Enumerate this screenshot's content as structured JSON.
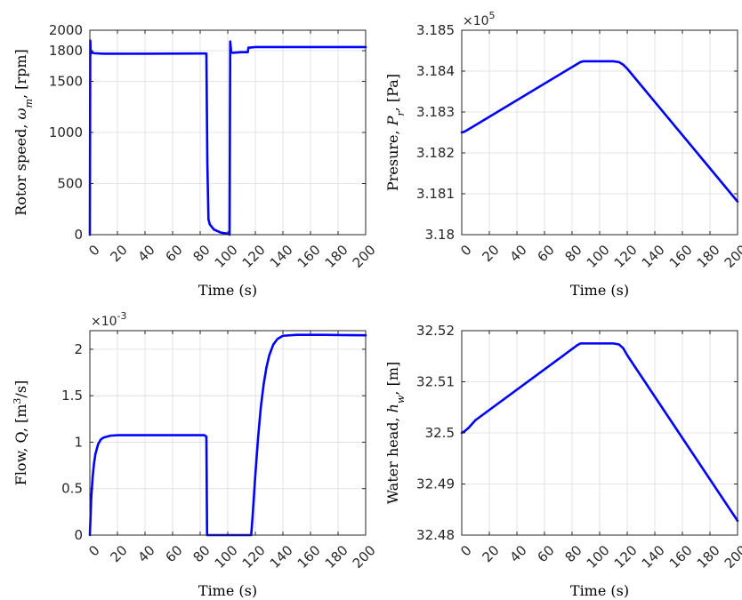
{
  "chart_data": [
    {
      "type": "line",
      "xlabel": "Time (s)",
      "ylabel": "Rotor speed, ω_m, [rpm]",
      "ylabel_parts": {
        "prefix": "Rotor speed, ",
        "symbol": "ω",
        "sub": "m",
        "suffix": ", [rpm]"
      },
      "xlim": [
        0,
        200
      ],
      "ylim": [
        0,
        2000
      ],
      "xticks": [
        "0",
        "20",
        "40",
        "60",
        "80",
        "100",
        "120",
        "140",
        "160",
        "180",
        "200"
      ],
      "yticks": [
        "0",
        "500",
        "1000",
        "1500",
        "1800",
        "2000"
      ],
      "ytick_values": [
        0,
        500,
        1000,
        1500,
        1800,
        2000
      ],
      "grid": true,
      "color": "#0000ff",
      "x": [
        0,
        0.3,
        0.6,
        1.5,
        3,
        10,
        40,
        80,
        84.5,
        85.2,
        86,
        87,
        90,
        95,
        100,
        101.3,
        101.8,
        102.5,
        104,
        110,
        114.5,
        115,
        116,
        120,
        150,
        200
      ],
      "y": [
        0,
        1900,
        1770,
        1785,
        1775,
        1770,
        1770,
        1772,
        1772,
        700,
        150,
        100,
        50,
        20,
        10,
        0,
        1890,
        1780,
        1780,
        1785,
        1785,
        1830,
        1830,
        1835,
        1835,
        1835
      ]
    },
    {
      "type": "line",
      "xlabel": "Time (s)",
      "ylabel": "Presure, P_r, [Pa]",
      "ylabel_parts": {
        "prefix": "Presure, ",
        "symbol": "P",
        "sub": "r",
        "suffix": ", [Pa]"
      },
      "xlim": [
        0,
        200
      ],
      "ylim": [
        3.18,
        3.185
      ],
      "exponent": "5",
      "xticks": [
        "0",
        "20",
        "40",
        "60",
        "80",
        "100",
        "120",
        "140",
        "160",
        "180",
        "200"
      ],
      "yticks": [
        "3.18",
        "3.181",
        "3.182",
        "3.183",
        "3.184",
        "3.185"
      ],
      "ytick_values": [
        3.18,
        3.181,
        3.182,
        3.183,
        3.184,
        3.185
      ],
      "grid": true,
      "color": "#0000ff",
      "x": [
        0,
        2,
        5,
        10,
        84,
        86,
        88,
        110,
        114,
        117,
        120,
        200
      ],
      "y": [
        3.1825,
        3.18252,
        3.18258,
        3.18268,
        3.18418,
        3.18422,
        3.18424,
        3.18424,
        3.18422,
        3.18416,
        3.18406,
        3.18081
      ]
    },
    {
      "type": "line",
      "xlabel": "Time (s)",
      "ylabel": "Flow, Q, [m³/s]",
      "ylabel_parts": {
        "prefix": "Flow, Q, [m",
        "sup": "3",
        "suffix": "/s]"
      },
      "xlim": [
        0,
        200
      ],
      "ylim": [
        0,
        2.2
      ],
      "exponent": "-3",
      "xticks": [
        "0",
        "20",
        "40",
        "60",
        "80",
        "100",
        "120",
        "140",
        "160",
        "180",
        "200"
      ],
      "yticks": [
        "0",
        "0.5",
        "1",
        "1.5",
        "2"
      ],
      "ytick_values": [
        0,
        0.5,
        1,
        1.5,
        2
      ],
      "grid": true,
      "color": "#0000ff",
      "x": [
        0,
        1,
        2,
        3,
        4,
        6,
        8,
        10,
        15,
        20,
        30,
        60,
        83,
        84.5,
        85,
        100,
        117,
        118,
        120,
        122,
        124,
        126,
        128,
        130,
        133,
        136,
        140,
        150,
        170,
        200
      ],
      "y": [
        0,
        0.4,
        0.62,
        0.77,
        0.87,
        0.98,
        1.03,
        1.05,
        1.07,
        1.075,
        1.075,
        1.075,
        1.075,
        1.06,
        0,
        0,
        0,
        0.2,
        0.65,
        1.05,
        1.38,
        1.62,
        1.8,
        1.93,
        2.05,
        2.11,
        2.145,
        2.155,
        2.155,
        2.15
      ]
    },
    {
      "type": "line",
      "xlabel": "Time (s)",
      "ylabel": "Water head, h_w, [m]",
      "ylabel_parts": {
        "prefix": "Water head, ",
        "symbol": "h",
        "sub": "w",
        "suffix": ", [m]"
      },
      "xlim": [
        0,
        200
      ],
      "ylim": [
        32.48,
        32.52
      ],
      "xticks": [
        "0",
        "20",
        "40",
        "60",
        "80",
        "100",
        "120",
        "140",
        "160",
        "180",
        "200"
      ],
      "yticks": [
        "32.48",
        "32.49",
        "32.5",
        "32.51",
        "32.52"
      ],
      "ytick_values": [
        32.48,
        32.49,
        32.5,
        32.51,
        32.52
      ],
      "grid": true,
      "color": "#0000ff",
      "x": [
        0,
        2,
        5,
        10,
        84,
        86,
        88,
        110,
        114,
        117,
        120,
        200
      ],
      "y": [
        32.5,
        32.5003,
        32.501,
        32.5025,
        32.5172,
        32.5175,
        32.5175,
        32.5175,
        32.5173,
        32.5166,
        32.5152,
        32.4828
      ]
    }
  ]
}
